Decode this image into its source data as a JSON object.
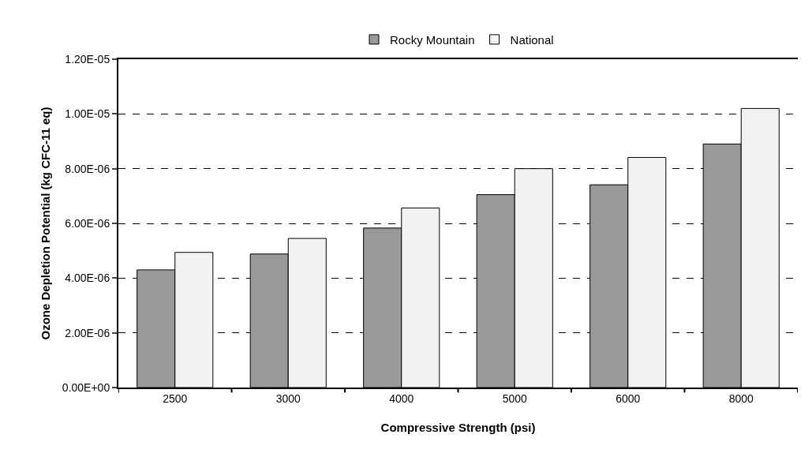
{
  "chart_data": {
    "type": "bar",
    "xlabel": "Compressive Strength (psi)",
    "ylabel": "Ozone Depletion Potential (kg CFC-11 eq)",
    "categories": [
      "2500",
      "3000",
      "4000",
      "5000",
      "6000",
      "8000"
    ],
    "series": [
      {
        "name": "Rocky Mountain",
        "color": "#999999",
        "values": [
          4.3e-06,
          4.88e-06,
          5.83e-06,
          7.05e-06,
          7.41e-06,
          8.9e-06
        ]
      },
      {
        "name": "National",
        "color": "#f2f2f2",
        "values": [
          4.94e-06,
          5.45e-06,
          6.56e-06,
          8e-06,
          8.41e-06,
          1.02e-05
        ]
      }
    ],
    "ylim": [
      0,
      1.2e-05
    ],
    "yticks": [
      {
        "value": 0,
        "label": "0.00E+00"
      },
      {
        "value": 2e-06,
        "label": "2.00E-06"
      },
      {
        "value": 4e-06,
        "label": "4.00E-06"
      },
      {
        "value": 6e-06,
        "label": "6.00E-06"
      },
      {
        "value": 8e-06,
        "label": "8.00E-06"
      },
      {
        "value": 1e-05,
        "label": "1.00E-05"
      },
      {
        "value": 1.2e-05,
        "label": "1.20E-05"
      }
    ],
    "grid": "y",
    "line_style": "dashed",
    "legend": "top"
  }
}
